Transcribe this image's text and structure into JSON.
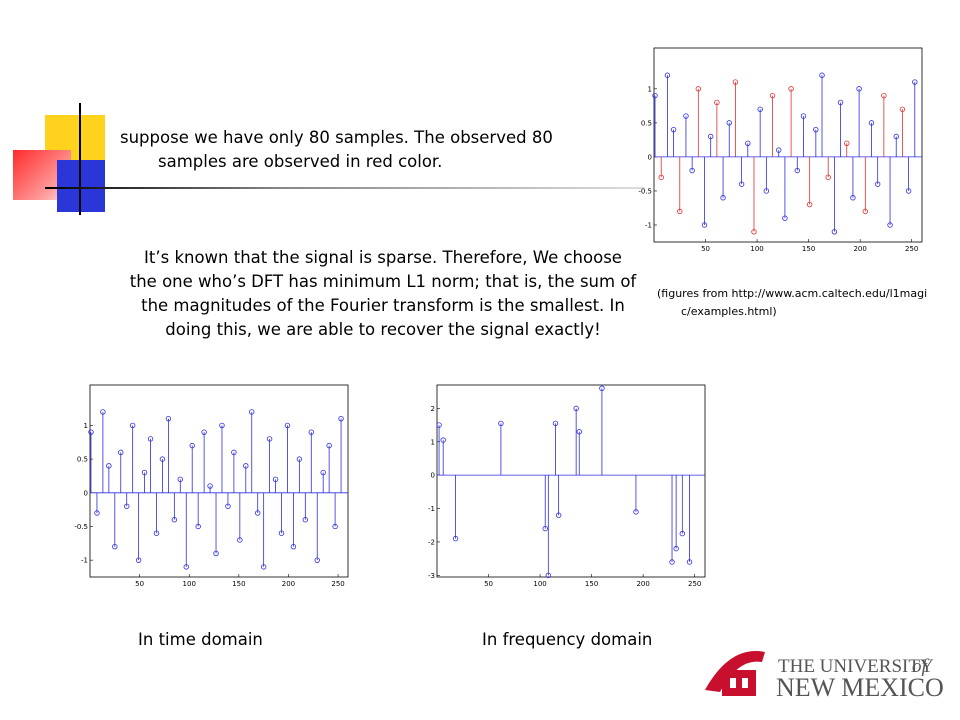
{
  "slide": {
    "bullet": "suppose we have only 80 samples. The observed 80 samples are observed in red color.",
    "paragraph": "It’s known that the signal is sparse. Therefore, We choose the one who’s DFT has minimum L1 norm; that is, the sum of the magnitudes of the Fourier transform is the smallest.  In doing this, we are able to recover the signal exactly!",
    "caption": "(figures from http://www.acm.caltech.edu/l1magic/examples.html)",
    "label_time": "In time domain",
    "label_freq": "In frequency domain",
    "logo_university": "THE UNIVERSITY",
    "logo_of": "of",
    "logo_state": "NEW MEXICO"
  },
  "chart_data": [
    {
      "type": "stem",
      "xlim": [
        0,
        260
      ],
      "ylim": [
        -1.25,
        1.6
      ],
      "xticks": [
        50,
        100,
        150,
        200,
        250
      ],
      "yticks": [
        -1,
        -0.5,
        0,
        0.5,
        1
      ],
      "series": [
        {
          "color": "#2d2de0",
          "x": [
            1,
            13,
            19,
            31,
            37,
            49,
            55,
            67,
            73,
            85,
            91,
            103,
            109,
            121,
            127,
            139,
            145,
            157,
            163,
            175,
            181,
            193,
            199,
            211,
            217,
            229,
            235,
            247,
            253
          ],
          "values": [
            0.9,
            1.2,
            0.4,
            0.6,
            -0.2,
            -1.0,
            0.3,
            -0.6,
            0.5,
            -0.4,
            0.2,
            0.7,
            -0.5,
            0.1,
            -0.9,
            -0.2,
            0.6,
            0.4,
            1.2,
            -1.1,
            0.8,
            -0.6,
            1.0,
            0.5,
            -0.4,
            -1.0,
            0.3,
            -0.5,
            1.1
          ]
        },
        {
          "color": "#e03030",
          "x": [
            7,
            25,
            43,
            61,
            79,
            97,
            115,
            133,
            151,
            169,
            187,
            205,
            223,
            241
          ],
          "values": [
            -0.3,
            -0.8,
            1.0,
            0.8,
            1.1,
            -1.1,
            0.9,
            1.0,
            -0.7,
            -0.3,
            0.2,
            -0.8,
            0.9,
            0.7
          ]
        }
      ]
    },
    {
      "type": "stem",
      "xlim": [
        0,
        260
      ],
      "ylim": [
        -1.25,
        1.6
      ],
      "xticks": [
        50,
        100,
        150,
        200,
        250
      ],
      "yticks": [
        -1,
        -0.5,
        0,
        0.5,
        1
      ],
      "series": [
        {
          "color": "#2d2de0",
          "x": [
            1,
            7,
            13,
            19,
            25,
            31,
            37,
            43,
            49,
            55,
            61,
            67,
            73,
            79,
            85,
            91,
            97,
            103,
            109,
            115,
            121,
            127,
            133,
            139,
            145,
            151,
            157,
            163,
            169,
            175,
            181,
            187,
            193,
            199,
            205,
            211,
            217,
            223,
            229,
            235,
            241,
            247,
            253
          ],
          "values": [
            0.9,
            -0.3,
            1.2,
            0.4,
            -0.8,
            0.6,
            -0.2,
            1.0,
            -1.0,
            0.3,
            0.8,
            -0.6,
            0.5,
            1.1,
            -0.4,
            0.2,
            -1.1,
            0.7,
            -0.5,
            0.9,
            0.1,
            -0.9,
            1.0,
            -0.2,
            0.6,
            -0.7,
            0.4,
            1.2,
            -0.3,
            -1.1,
            0.8,
            0.2,
            -0.6,
            1.0,
            -0.8,
            0.5,
            -0.4,
            0.9,
            -1.0,
            0.3,
            0.7,
            -0.5,
            1.1
          ]
        }
      ]
    },
    {
      "type": "stem",
      "xlim": [
        0,
        260
      ],
      "ylim": [
        -3.05,
        2.7
      ],
      "xticks": [
        50,
        100,
        150,
        200,
        250
      ],
      "yticks": [
        -3,
        -2,
        -1,
        0,
        1,
        2
      ],
      "series": [
        {
          "color": "#2d2de0",
          "x": [
            2,
            6,
            18,
            62,
            105,
            108,
            115,
            118,
            135,
            138,
            160,
            193,
            228,
            232,
            238,
            245
          ],
          "values": [
            1.5,
            1.05,
            -1.9,
            1.55,
            -1.6,
            -3.0,
            1.55,
            -1.2,
            2.0,
            1.3,
            2.6,
            -1.1,
            -2.6,
            -2.2,
            -1.75,
            -2.6
          ]
        }
      ]
    }
  ]
}
